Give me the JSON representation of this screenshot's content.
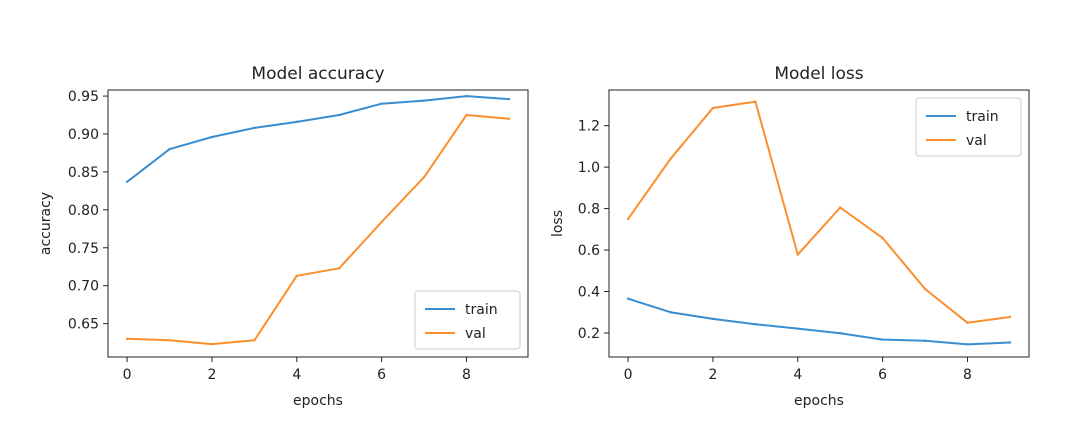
{
  "colors": {
    "train": "#3a8ed0",
    "val": "#fa8f2b"
  },
  "chart_data": [
    {
      "type": "line",
      "title": "Model accuracy",
      "xlabel": "epochs",
      "ylabel": "accuracy",
      "x": [
        0,
        1,
        2,
        3,
        4,
        5,
        6,
        7,
        8,
        9
      ],
      "xlim": [
        -0.45,
        9.45
      ],
      "ylim": [
        0.606,
        0.958
      ],
      "xticks": [
        0,
        2,
        4,
        6,
        8
      ],
      "yticks": [
        0.65,
        0.7,
        0.75,
        0.8,
        0.85,
        0.9,
        0.95
      ],
      "ytick_labels": [
        "0.65",
        "0.70",
        "0.75",
        "0.80",
        "0.85",
        "0.90",
        "0.95"
      ],
      "legend_position": "lower-right",
      "grid": false,
      "series": [
        {
          "name": "train",
          "values": [
            0.837,
            0.88,
            0.896,
            0.908,
            0.916,
            0.925,
            0.94,
            0.944,
            0.95,
            0.946
          ]
        },
        {
          "name": "val",
          "values": [
            0.63,
            0.628,
            0.623,
            0.628,
            0.713,
            0.723,
            0.784,
            0.843,
            0.925,
            0.92
          ]
        }
      ]
    },
    {
      "type": "line",
      "title": "Model loss",
      "xlabel": "epochs",
      "ylabel": "loss",
      "x": [
        0,
        1,
        2,
        3,
        4,
        5,
        6,
        7,
        8,
        9
      ],
      "xlim": [
        -0.45,
        9.45
      ],
      "ylim": [
        0.084,
        1.372
      ],
      "xticks": [
        0,
        2,
        4,
        6,
        8
      ],
      "yticks": [
        0.2,
        0.4,
        0.6,
        0.8,
        1.0,
        1.2
      ],
      "ytick_labels": [
        "0.2",
        "0.4",
        "0.6",
        "0.8",
        "1.0",
        "1.2"
      ],
      "legend_position": "upper-right",
      "grid": false,
      "series": [
        {
          "name": "train",
          "values": [
            0.365,
            0.3,
            0.268,
            0.242,
            0.221,
            0.199,
            0.168,
            0.162,
            0.145,
            0.154
          ]
        },
        {
          "name": "val",
          "values": [
            0.75,
            1.04,
            1.285,
            1.316,
            0.578,
            0.805,
            0.658,
            0.412,
            0.249,
            0.277
          ]
        }
      ]
    }
  ]
}
